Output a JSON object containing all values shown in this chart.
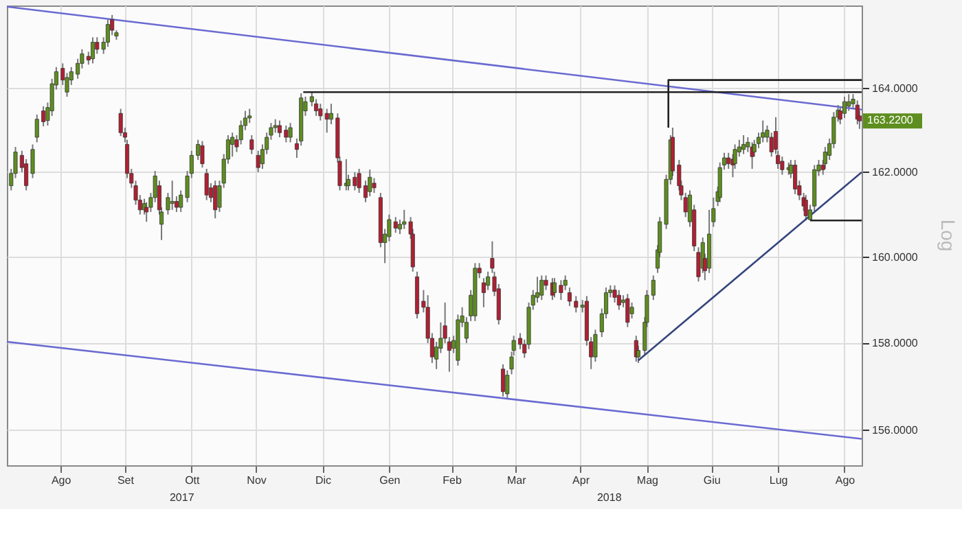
{
  "chart_data": {
    "type": "candlestick",
    "ylabel": "Log",
    "log": true,
    "grid": true,
    "xlim": [
      "2017-07-22",
      "2018-08-24"
    ],
    "ylim": [
      155.2,
      166
    ],
    "yticks": [
      {
        "value": 156,
        "label": "156.0000"
      },
      {
        "value": 158,
        "label": "158.0000"
      },
      {
        "value": 160,
        "label": "160.0000"
      },
      {
        "value": 162,
        "label": "162.0000"
      },
      {
        "value": 164,
        "label": "164.0000"
      }
    ],
    "xticks": [
      {
        "value": "2017-08-16",
        "label": "Ago"
      },
      {
        "value": "2017-09-15",
        "label": "Set"
      },
      {
        "value": "2017-10-16",
        "label": "Ott"
      },
      {
        "value": "2017-11-15",
        "label": "Nov"
      },
      {
        "value": "2017-12-16",
        "label": "Dic"
      },
      {
        "value": "2018-01-16",
        "label": "Gen"
      },
      {
        "value": "2018-02-14",
        "label": "Feb"
      },
      {
        "value": "2018-03-16",
        "label": "Mar"
      },
      {
        "value": "2018-04-15",
        "label": "Apr"
      },
      {
        "value": "2018-05-16",
        "label": "Mag"
      },
      {
        "value": "2018-06-15",
        "label": "Giu"
      },
      {
        "value": "2018-07-16",
        "label": "Lug"
      },
      {
        "value": "2018-08-16",
        "label": "Ago"
      }
    ],
    "annotations": [
      "2017",
      "2018",
      "163.2200"
    ],
    "colors": [
      "#5e8e1f",
      "#5e8e1f",
      "#b11f33",
      "#b11f33",
      "#5e8e1f",
      "#5e8e1f",
      "#b11f33",
      "#5e8e1f",
      "#5e8e1f",
      "#5e8e1f",
      "#b11f33",
      "#5e8e1f",
      "#5e8e1f",
      "#5e8e1f",
      "#5e8e1f",
      "#b11f33",
      "#5e8e1f",
      "#b11f33",
      "#5e8e1f",
      "#5e8e1f",
      "#b11f33",
      "#5e8e1f",
      "#b11f33",
      "#b11f33",
      "#b11f33",
      "#b11f33",
      "#b11f33",
      "#b11f33",
      "#5e8e1f",
      "#b11f33",
      "#5e8e1f",
      "#5e8e1f",
      "#b11f33",
      "#5e8e1f",
      "#5e8e1f",
      "#5e8e1f",
      "#b11f33",
      "#5e8e1f",
      "#5e8e1f",
      "#5e8e1f",
      "#5e8e1f",
      "#b11f33",
      "#b11f33",
      "#b11f33",
      "#b11f33",
      "#5e8e1f",
      "#5e8e1f",
      "#5e8e1f",
      "#5e8e1f",
      "#b11f33",
      "#5e8e1f",
      "#5e8e1f",
      "#5e8e1f",
      "#b11f33",
      "#b11f33",
      "#5e8e1f",
      "#5e8e1f",
      "#5e8e1f",
      "#5e8e1f",
      "#b11f33",
      "#b11f33",
      "#5e8e1f",
      "#b11f33",
      "#5e8e1f",
      "#5e8e1f",
      "#5e8e1f",
      "#b11f33",
      "#b11f33",
      "#b11f33",
      "#5e8e1f",
      "#b11f33",
      "#b11f33",
      "#5e8e1f",
      "#5e8e1f",
      "#b11f33",
      "#b11f33",
      "#b11f33",
      "#5e8e1f",
      "#b11f33",
      "#b11f33",
      "#5e8e1f",
      "#5e8e1f",
      "#b11f33",
      "#5e8e1f",
      "#5e8e1f",
      "#b11f33",
      "#b11f33",
      "#b11f33",
      "#b11f33",
      "#b11f33",
      "#b11f33",
      "#5e8e1f",
      "#5e8e1f",
      "#b11f33",
      "#b11f33",
      "#5e8e1f",
      "#5e8e1f",
      "#5e8e1f",
      "#5e8e1f",
      "#5e8e1f",
      "#5e8e1f",
      "#b11f33",
      "#b11f33",
      "#5e8e1f",
      "#b11f33",
      "#b11f33",
      "#b11f33",
      "#b11f33",
      "#5e8e1f",
      "#5e8e1f",
      "#5e8e1f",
      "#b11f33",
      "#b11f33",
      "#5e8e1f",
      "#5e8e1f",
      "#5e8e1f",
      "#5e8e1f",
      "#b11f33",
      "#b11f33",
      "#5e8e1f",
      "#b11f33",
      "#5e8e1f",
      "#b11f33",
      "#b11f33",
      "#5e8e1f",
      "#b11f33",
      "#b11f33",
      "#5e8e1f",
      "#5e8e1f",
      "#5e8e1f",
      "#5e8e1f",
      "#b11f33",
      "#b11f33",
      "#5e8e1f",
      "#b11f33",
      "#5e8e1f",
      "#b11f33",
      "#5e8e1f",
      "#5e8e1f",
      "#5e8e1f",
      "#5e8e1f",
      "#5e8e1f",
      "#5e8e1f",
      "#5e8e1f",
      "#5e8e1f",
      "#b11f33",
      "#b11f33",
      "#b11f33",
      "#b11f33",
      "#5e8e1f",
      "#b11f33",
      "#b11f33",
      "#5e8e1f",
      "#b11f33",
      "#5e8e1f",
      "#5e8e1f",
      "#5e8e1f",
      "#5e8e1f",
      "#5e8e1f",
      "#b11f33",
      "#b11f33",
      "#5e8e1f",
      "#5e8e1f",
      "#5e8e1f",
      "#5e8e1f",
      "#b11f33",
      "#5e8e1f",
      "#5e8e1f",
      "#5e8e1f",
      "#5e8e1f",
      "#b11f33",
      "#b11f33",
      "#b11f33",
      "#b11f33",
      "#5e8e1f",
      "#5e8e1f",
      "#b11f33",
      "#b11f33",
      "#b11f33",
      "#b11f33",
      "#5e8e1f",
      "#5e8e1f",
      "#5e8e1f",
      "#b11f33",
      "#5e8e1f",
      "#5e8e1f",
      "#5e8e1f",
      "#5e8e1f",
      "#b11f33",
      "#5e8e1f",
      "#5e8e1f",
      "#5e8e1f",
      "#b11f33",
      "#b11f33"
    ],
    "x": [
      "2017-07-24",
      "2017-07-26",
      "2017-07-29",
      "2017-07-31",
      "2017-08-03",
      "2017-08-05",
      "2017-08-08",
      "2017-08-10",
      "2017-08-12",
      "2017-08-14",
      "2017-08-17",
      "2017-08-19",
      "2017-08-21",
      "2017-08-24",
      "2017-08-26",
      "2017-08-29",
      "2017-08-31",
      "2017-09-02",
      "2017-09-05",
      "2017-09-07",
      "2017-09-09",
      "2017-09-11",
      "2017-09-13",
      "2017-09-15",
      "2017-09-16",
      "2017-09-18",
      "2017-09-20",
      "2017-09-22",
      "2017-09-24",
      "2017-09-25",
      "2017-09-27",
      "2017-09-29",
      "2017-10-01",
      "2017-10-02",
      "2017-10-05",
      "2017-10-07",
      "2017-10-09",
      "2017-10-11",
      "2017-10-14",
      "2017-10-16",
      "2017-10-19",
      "2017-10-21",
      "2017-10-23",
      "2017-10-25",
      "2017-10-27",
      "2017-10-29",
      "2017-10-31",
      "2017-11-02",
      "2017-11-04",
      "2017-11-06",
      "2017-11-08",
      "2017-11-10",
      "2017-11-12",
      "2017-11-13",
      "2017-11-16",
      "2017-11-18",
      "2017-11-20",
      "2017-11-22",
      "2017-11-24",
      "2017-11-26",
      "2017-11-29",
      "2017-12-01",
      "2017-12-04",
      "2017-12-06",
      "2017-12-08",
      "2017-12-11",
      "2017-12-13",
      "2017-12-15",
      "2017-12-18",
      "2017-12-20",
      "2017-12-23",
      "2017-12-24",
      "2017-12-27",
      "2017-12-28",
      "2017-12-31",
      "2018-01-02",
      "2018-01-05",
      "2018-01-07",
      "2018-01-09",
      "2018-01-12",
      "2018-01-14",
      "2018-01-16",
      "2018-01-19",
      "2018-01-21",
      "2018-01-23",
      "2018-01-26",
      "2018-01-27",
      "2018-01-29",
      "2018-02-01",
      "2018-02-03",
      "2018-02-05",
      "2018-02-07",
      "2018-02-09",
      "2018-02-11",
      "2018-02-13",
      "2018-02-15",
      "2018-02-17",
      "2018-02-19",
      "2018-02-21",
      "2018-02-23",
      "2018-02-25",
      "2018-02-27",
      "2018-03-01",
      "2018-03-03",
      "2018-03-05",
      "2018-03-06",
      "2018-03-08",
      "2018-03-10",
      "2018-03-12",
      "2018-03-14",
      "2018-03-15",
      "2018-03-18",
      "2018-03-20",
      "2018-03-22",
      "2018-03-24",
      "2018-03-26",
      "2018-03-28",
      "2018-03-30",
      "2018-04-02",
      "2018-04-03",
      "2018-04-06",
      "2018-04-08",
      "2018-04-10",
      "2018-04-13",
      "2018-04-16",
      "2018-04-18",
      "2018-04-20",
      "2018-04-22",
      "2018-04-25",
      "2018-04-27",
      "2018-04-29",
      "2018-05-01",
      "2018-05-03",
      "2018-05-05",
      "2018-05-07",
      "2018-05-09",
      "2018-05-11",
      "2018-05-12",
      "2018-05-15",
      "2018-05-16",
      "2018-05-19",
      "2018-05-21",
      "2018-05-22",
      "2018-05-25",
      "2018-05-27",
      "2018-05-28",
      "2018-05-31",
      "2018-06-01",
      "2018-06-03",
      "2018-06-05",
      "2018-06-07",
      "2018-06-09",
      "2018-06-11",
      "2018-06-12",
      "2018-06-14",
      "2018-06-16",
      "2018-06-18",
      "2018-06-19",
      "2018-06-21",
      "2018-06-23",
      "2018-06-25",
      "2018-06-26",
      "2018-06-28",
      "2018-06-30",
      "2018-07-02",
      "2018-07-04",
      "2018-07-05",
      "2018-07-07",
      "2018-07-09",
      "2018-07-11",
      "2018-07-13",
      "2018-07-15",
      "2018-07-16",
      "2018-07-18",
      "2018-07-21",
      "2018-07-22",
      "2018-07-24",
      "2018-07-26",
      "2018-07-28",
      "2018-07-29",
      "2018-07-31",
      "2018-08-02",
      "2018-08-04",
      "2018-08-06",
      "2018-08-07",
      "2018-08-09",
      "2018-08-11",
      "2018-08-13",
      "2018-08-14",
      "2018-08-16",
      "2018-08-18",
      "2018-08-20",
      "2018-08-22",
      "2018-08-23"
    ],
    "ohlc": [
      [
        161.68,
        162.08,
        161.57,
        161.97
      ],
      [
        161.97,
        162.6,
        161.86,
        162.48
      ],
      [
        162.4,
        162.51,
        162.0,
        162.11
      ],
      [
        162.2,
        162.31,
        161.57,
        161.68
      ],
      [
        161.97,
        162.66,
        161.86,
        162.54
      ],
      [
        162.83,
        163.37,
        162.71,
        163.26
      ],
      [
        163.46,
        163.57,
        163.09,
        163.2
      ],
      [
        163.23,
        163.66,
        163.11,
        163.54
      ],
      [
        163.46,
        164.23,
        163.34,
        164.11
      ],
      [
        164.08,
        164.51,
        163.97,
        164.4
      ],
      [
        164.48,
        164.6,
        164.08,
        164.2
      ],
      [
        163.91,
        164.37,
        163.8,
        164.26
      ],
      [
        164.2,
        164.51,
        164.08,
        164.4
      ],
      [
        164.34,
        164.71,
        164.23,
        164.6
      ],
      [
        164.6,
        164.94,
        164.48,
        164.83
      ],
      [
        164.77,
        164.88,
        164.57,
        164.68
      ],
      [
        164.71,
        165.23,
        164.6,
        165.11
      ],
      [
        165.11,
        165.23,
        164.83,
        164.94
      ],
      [
        164.94,
        165.23,
        164.83,
        165.11
      ],
      [
        165.11,
        165.66,
        165.0,
        165.54
      ],
      [
        165.66,
        165.77,
        165.28,
        165.4
      ],
      [
        165.26,
        165.4,
        165.17,
        165.34
      ],
      [
        163.4,
        163.51,
        162.86,
        162.94
      ],
      [
        162.94,
        163.06,
        162.71,
        162.83
      ],
      [
        162.66,
        162.77,
        161.86,
        161.97
      ],
      [
        161.97,
        162.08,
        161.63,
        161.74
      ],
      [
        161.68,
        161.8,
        161.23,
        161.34
      ],
      [
        161.34,
        161.46,
        161.0,
        161.11
      ],
      [
        161.11,
        161.37,
        161.0,
        161.26
      ],
      [
        161.17,
        161.29,
        160.83,
        161.06
      ],
      [
        161.17,
        161.51,
        161.06,
        161.4
      ],
      [
        161.4,
        162.03,
        161.29,
        161.91
      ],
      [
        161.68,
        161.8,
        161.0,
        161.11
      ],
      [
        160.77,
        161.17,
        160.4,
        161.06
      ],
      [
        161.11,
        161.51,
        161.0,
        161.4
      ],
      [
        161.26,
        161.8,
        161.11,
        161.31
      ],
      [
        161.31,
        161.43,
        161.06,
        161.17
      ],
      [
        161.17,
        161.57,
        161.06,
        161.46
      ],
      [
        161.4,
        162.03,
        161.29,
        161.91
      ],
      [
        161.97,
        162.51,
        161.86,
        162.4
      ],
      [
        162.4,
        162.77,
        162.29,
        162.66
      ],
      [
        162.63,
        162.74,
        162.11,
        162.2
      ],
      [
        161.97,
        162.08,
        161.34,
        161.46
      ],
      [
        161.63,
        161.74,
        161.29,
        161.4
      ],
      [
        161.68,
        161.8,
        160.91,
        161.11
      ],
      [
        161.17,
        161.8,
        161.06,
        161.68
      ],
      [
        161.74,
        162.43,
        161.63,
        162.31
      ],
      [
        162.31,
        162.88,
        162.2,
        162.77
      ],
      [
        162.66,
        162.94,
        162.37,
        162.83
      ],
      [
        162.77,
        162.88,
        162.48,
        162.6
      ],
      [
        162.77,
        163.23,
        162.66,
        163.11
      ],
      [
        163.11,
        163.46,
        163.0,
        163.29
      ],
      [
        163.29,
        163.51,
        163.17,
        163.34
      ],
      [
        162.77,
        162.88,
        162.43,
        162.54
      ],
      [
        162.4,
        162.51,
        162.0,
        162.11
      ],
      [
        162.2,
        162.66,
        162.08,
        162.54
      ],
      [
        162.54,
        162.94,
        162.43,
        162.83
      ],
      [
        162.88,
        163.17,
        162.77,
        163.06
      ],
      [
        163.06,
        163.26,
        162.94,
        163.11
      ],
      [
        163.11,
        163.23,
        162.83,
        162.94
      ],
      [
        163.0,
        163.11,
        162.71,
        162.83
      ],
      [
        162.83,
        163.17,
        162.71,
        163.06
      ],
      [
        162.68,
        162.8,
        162.34,
        162.54
      ],
      [
        162.74,
        163.88,
        162.63,
        163.77
      ],
      [
        163.46,
        163.8,
        163.34,
        163.68
      ],
      [
        163.68,
        163.91,
        163.57,
        163.8
      ],
      [
        163.63,
        163.74,
        163.34,
        163.46
      ],
      [
        163.51,
        163.63,
        163.23,
        163.34
      ],
      [
        163.4,
        163.51,
        162.94,
        163.26
      ],
      [
        163.26,
        163.63,
        163.14,
        163.4
      ],
      [
        163.29,
        163.4,
        162.23,
        162.34
      ],
      [
        162.26,
        162.37,
        161.57,
        161.68
      ],
      [
        161.68,
        162.31,
        161.57,
        161.74
      ],
      [
        161.68,
        161.94,
        161.57,
        161.83
      ],
      [
        161.88,
        162.0,
        161.57,
        161.68
      ],
      [
        161.97,
        162.08,
        161.51,
        161.63
      ],
      [
        161.68,
        161.8,
        161.29,
        161.4
      ],
      [
        161.54,
        162.06,
        161.43,
        161.88
      ],
      [
        161.74,
        161.86,
        161.51,
        161.63
      ],
      [
        161.4,
        161.51,
        160.23,
        160.34
      ],
      [
        160.34,
        160.66,
        159.86,
        160.54
      ],
      [
        160.48,
        161.0,
        160.37,
        160.88
      ],
      [
        160.83,
        160.94,
        160.57,
        160.68
      ],
      [
        160.66,
        160.88,
        160.54,
        160.77
      ],
      [
        160.77,
        161.11,
        160.66,
        160.83
      ],
      [
        160.83,
        160.94,
        160.43,
        160.54
      ],
      [
        160.54,
        160.66,
        159.66,
        159.77
      ],
      [
        159.54,
        159.66,
        158.57,
        158.68
      ],
      [
        158.97,
        159.23,
        158.71,
        158.83
      ],
      [
        158.83,
        159.11,
        158.0,
        158.11
      ],
      [
        158.11,
        158.23,
        157.54,
        157.68
      ],
      [
        157.63,
        158.03,
        157.4,
        157.91
      ],
      [
        157.88,
        158.48,
        157.77,
        158.11
      ],
      [
        158.4,
        158.94,
        158.0,
        158.11
      ],
      [
        158.03,
        158.14,
        157.34,
        157.83
      ],
      [
        157.88,
        158.17,
        157.77,
        158.06
      ],
      [
        157.6,
        158.66,
        157.48,
        158.54
      ],
      [
        158.48,
        158.83,
        158.37,
        158.63
      ],
      [
        158.11,
        158.6,
        158.0,
        158.48
      ],
      [
        158.63,
        159.23,
        158.51,
        159.11
      ],
      [
        158.63,
        159.86,
        158.51,
        159.74
      ],
      [
        159.74,
        159.86,
        159.51,
        159.63
      ],
      [
        159.4,
        159.51,
        158.83,
        159.17
      ],
      [
        159.34,
        159.66,
        159.23,
        159.54
      ],
      [
        159.97,
        160.37,
        159.63,
        159.74
      ],
      [
        159.54,
        159.66,
        159.09,
        159.2
      ],
      [
        159.26,
        159.37,
        158.43,
        158.54
      ],
      [
        157.4,
        157.51,
        156.77,
        156.88
      ],
      [
        156.83,
        157.37,
        156.71,
        157.26
      ],
      [
        157.4,
        157.8,
        157.28,
        157.68
      ],
      [
        157.83,
        158.17,
        157.71,
        158.06
      ],
      [
        158.11,
        158.23,
        157.86,
        157.97
      ],
      [
        157.97,
        158.08,
        157.66,
        157.77
      ],
      [
        157.97,
        158.94,
        157.86,
        158.83
      ],
      [
        158.88,
        159.23,
        158.77,
        159.11
      ],
      [
        159.06,
        159.54,
        158.94,
        159.17
      ],
      [
        159.11,
        159.57,
        159.0,
        159.46
      ],
      [
        159.46,
        159.57,
        159.23,
        159.34
      ],
      [
        159.4,
        159.51,
        159.0,
        159.11
      ],
      [
        159.17,
        159.51,
        159.06,
        159.4
      ],
      [
        159.34,
        159.46,
        159.0,
        159.17
      ],
      [
        159.34,
        159.57,
        159.23,
        159.46
      ],
      [
        159.17,
        159.29,
        158.86,
        158.97
      ],
      [
        158.97,
        159.09,
        158.71,
        158.83
      ],
      [
        158.83,
        159.0,
        158.71,
        158.88
      ],
      [
        158.97,
        159.09,
        157.94,
        158.06
      ],
      [
        158.03,
        158.14,
        157.4,
        157.68
      ],
      [
        157.68,
        158.31,
        157.57,
        158.2
      ],
      [
        158.26,
        158.8,
        158.14,
        158.68
      ],
      [
        158.68,
        159.29,
        158.57,
        159.17
      ],
      [
        159.17,
        159.34,
        159.06,
        159.23
      ],
      [
        159.23,
        159.34,
        158.94,
        159.06
      ],
      [
        159.11,
        159.23,
        158.77,
        158.88
      ],
      [
        158.94,
        159.11,
        158.83,
        159.0
      ],
      [
        159.03,
        159.14,
        158.37,
        158.48
      ],
      [
        158.68,
        158.94,
        158.57,
        158.83
      ],
      [
        158.06,
        158.17,
        157.57,
        157.68
      ],
      [
        157.68,
        157.94,
        157.54,
        157.83
      ],
      [
        157.83,
        158.6,
        157.71,
        158.48
      ],
      [
        158.48,
        159.23,
        158.37,
        159.11
      ],
      [
        159.11,
        159.57,
        159.0,
        159.46
      ],
      [
        159.74,
        160.28,
        159.63,
        160.17
      ],
      [
        160.11,
        160.94,
        160.0,
        160.83
      ],
      [
        160.77,
        161.94,
        160.66,
        161.83
      ],
      [
        161.83,
        162.88,
        161.71,
        162.77
      ],
      [
        162.83,
        163.06,
        161.91,
        162.03
      ],
      [
        162.17,
        162.29,
        161.57,
        161.68
      ],
      [
        161.68,
        161.8,
        161.34,
        161.46
      ],
      [
        161.4,
        161.51,
        160.94,
        161.06
      ],
      [
        160.83,
        161.57,
        160.71,
        161.46
      ],
      [
        161.11,
        161.23,
        160.14,
        160.26
      ],
      [
        160.11,
        160.23,
        159.43,
        159.54
      ],
      [
        159.74,
        160.46,
        159.63,
        160.34
      ],
      [
        159.97,
        160.08,
        159.46,
        159.68
      ],
      [
        159.74,
        161.11,
        159.63,
        160.54
      ],
      [
        160.83,
        161.4,
        160.71,
        161.14
      ],
      [
        161.31,
        161.66,
        161.2,
        161.54
      ],
      [
        161.4,
        162.23,
        161.29,
        162.11
      ],
      [
        162.17,
        162.46,
        162.06,
        162.34
      ],
      [
        162.34,
        162.46,
        162.08,
        162.2
      ],
      [
        162.31,
        162.43,
        161.88,
        162.17
      ],
      [
        162.2,
        162.66,
        162.08,
        162.54
      ],
      [
        162.48,
        162.77,
        162.37,
        162.6
      ],
      [
        162.54,
        162.88,
        162.43,
        162.66
      ],
      [
        162.6,
        162.83,
        162.48,
        162.71
      ],
      [
        162.6,
        162.71,
        162.08,
        162.37
      ],
      [
        162.48,
        162.77,
        162.37,
        162.66
      ],
      [
        162.68,
        162.94,
        162.57,
        162.83
      ],
      [
        162.83,
        163.23,
        162.71,
        162.94
      ],
      [
        162.83,
        163.11,
        162.71,
        163.0
      ],
      [
        162.83,
        162.94,
        162.37,
        162.48
      ],
      [
        162.97,
        163.31,
        162.43,
        162.54
      ],
      [
        162.4,
        162.51,
        162.08,
        162.2
      ],
      [
        162.26,
        162.37,
        161.94,
        162.06
      ],
      [
        162.06,
        162.23,
        161.94,
        162.11
      ],
      [
        161.97,
        162.29,
        161.86,
        162.17
      ],
      [
        162.17,
        162.29,
        161.48,
        161.6
      ],
      [
        161.68,
        161.8,
        161.34,
        161.46
      ],
      [
        161.4,
        161.51,
        161.08,
        161.2
      ],
      [
        161.34,
        161.46,
        160.86,
        160.97
      ],
      [
        160.88,
        161.23,
        160.86,
        161.11
      ],
      [
        161.2,
        162.17,
        161.08,
        162.06
      ],
      [
        162.03,
        162.29,
        161.91,
        162.17
      ],
      [
        162.17,
        162.29,
        161.94,
        162.06
      ],
      [
        162.2,
        162.6,
        162.08,
        162.48
      ],
      [
        162.4,
        162.8,
        162.29,
        162.68
      ],
      [
        162.68,
        163.43,
        162.57,
        163.31
      ],
      [
        163.31,
        163.6,
        163.2,
        163.48
      ],
      [
        163.46,
        163.57,
        163.14,
        163.26
      ],
      [
        163.4,
        163.8,
        163.29,
        163.68
      ],
      [
        163.57,
        163.86,
        163.46,
        163.68
      ],
      [
        163.63,
        163.86,
        163.51,
        163.74
      ],
      [
        163.6,
        163.71,
        163.14,
        163.26
      ],
      [
        163.34,
        163.46,
        163.03,
        163.22
      ]
    ],
    "series": [
      {
        "type": "line",
        "x": [
          "2017-07-22",
          "2018-08-24"
        ],
        "values": [
          165.97,
          163.49
        ],
        "color": "#6a6ad2"
      },
      {
        "type": "line",
        "x": [
          "2017-07-22",
          "2018-08-24"
        ],
        "values": [
          158.03,
          155.8
        ],
        "color": "#6a6ad2"
      },
      {
        "type": "line",
        "x": [
          "2018-05-12",
          "2018-08-24"
        ],
        "values": [
          157.6,
          162.0
        ],
        "color": "#34467e"
      },
      {
        "type": "line",
        "x": [
          "2017-12-07",
          "2018-08-24"
        ],
        "values": [
          163.91,
          163.91
        ],
        "color": "#222222"
      },
      {
        "type": "line",
        "x": [
          "2018-05-26",
          "2018-05-26",
          "2018-08-24"
        ],
        "values": [
          163.06,
          164.2,
          164.2
        ],
        "color": "#222222"
      },
      {
        "type": "line",
        "x": [
          "2018-07-31",
          "2018-08-24"
        ],
        "values": [
          160.86,
          160.86
        ],
        "color": "#222222"
      }
    ]
  }
}
